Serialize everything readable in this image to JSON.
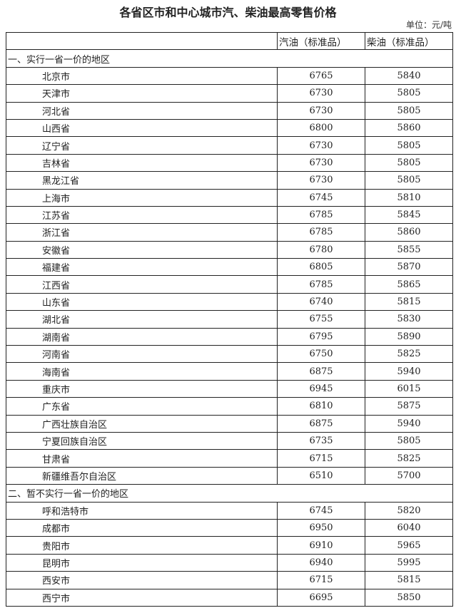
{
  "title": "各省区市和中心城市汽、柴油最高零售价格",
  "unit": "单位：元/吨",
  "headers": [
    "",
    "汽油（标准品）",
    "柴油（标准品）"
  ],
  "sections": [
    {
      "label": "一、实行一省一价的地区",
      "rows": [
        [
          "北京市",
          "6765",
          "5840"
        ],
        [
          "天津市",
          "6730",
          "5805"
        ],
        [
          "河北省",
          "6730",
          "5805"
        ],
        [
          "山西省",
          "6800",
          "5860"
        ],
        [
          "辽宁省",
          "6730",
          "5805"
        ],
        [
          "吉林省",
          "6730",
          "5805"
        ],
        [
          "黑龙江省",
          "6730",
          "5805"
        ],
        [
          "上海市",
          "6745",
          "5810"
        ],
        [
          "江苏省",
          "6785",
          "5845"
        ],
        [
          "浙江省",
          "6785",
          "5860"
        ],
        [
          "安徽省",
          "6780",
          "5855"
        ],
        [
          "福建省",
          "6805",
          "5870"
        ],
        [
          "江西省",
          "6785",
          "5865"
        ],
        [
          "山东省",
          "6740",
          "5815"
        ],
        [
          "湖北省",
          "6755",
          "5830"
        ],
        [
          "湖南省",
          "6795",
          "5890"
        ],
        [
          "河南省",
          "6750",
          "5825"
        ],
        [
          "海南省",
          "6875",
          "5940"
        ],
        [
          "重庆市",
          "6945",
          "6015"
        ],
        [
          "广东省",
          "6810",
          "5875"
        ],
        [
          "广西壮族自治区",
          "6875",
          "5940"
        ],
        [
          "宁夏回族自治区",
          "6735",
          "5805"
        ],
        [
          "甘肃省",
          "6715",
          "5825"
        ],
        [
          "新疆维吾尔自治区",
          "6510",
          "5700"
        ]
      ]
    },
    {
      "label": "二、暂不实行一省一价的地区",
      "rows": [
        [
          "呼和浩特市",
          "6745",
          "5820"
        ],
        [
          "成都市",
          "6950",
          "6040"
        ],
        [
          "贵阳市",
          "6910",
          "5965"
        ],
        [
          "昆明市",
          "6940",
          "5995"
        ],
        [
          "西安市",
          "6715",
          "5815"
        ],
        [
          "西宁市",
          "6695",
          "5850"
        ]
      ]
    }
  ]
}
